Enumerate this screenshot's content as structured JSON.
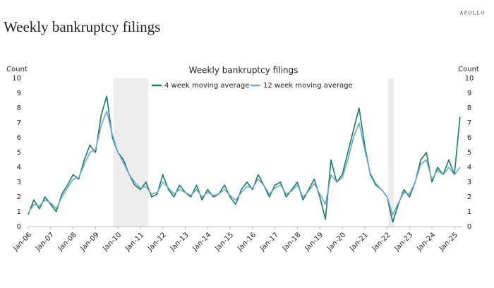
{
  "brand": "APOLLO",
  "header": "Weekly bankruptcy filings",
  "chart_data": {
    "type": "line",
    "title": "Weekly bankruptcy filings",
    "ylabel": "Count",
    "y2label": "Count",
    "xlim": [
      2006,
      2025.35
    ],
    "ylim": [
      0,
      10
    ],
    "y2lim": [
      0,
      10
    ],
    "yticks": [
      0,
      1,
      2,
      3,
      4,
      5,
      6,
      7,
      8,
      9,
      10
    ],
    "y2ticks": [
      0,
      1,
      2,
      3,
      4,
      5,
      6,
      7,
      8,
      9,
      10
    ],
    "xticks": [
      {
        "value": 2006,
        "label": "Jan-06"
      },
      {
        "value": 2007,
        "label": "Jan-07"
      },
      {
        "value": 2008,
        "label": "Jan-08"
      },
      {
        "value": 2009,
        "label": "Jan-09"
      },
      {
        "value": 2010,
        "label": "Jan-10"
      },
      {
        "value": 2011,
        "label": "Jan-11"
      },
      {
        "value": 2012,
        "label": "Jan-12"
      },
      {
        "value": 2013,
        "label": "Jan-13"
      },
      {
        "value": 2014,
        "label": "Jan-14"
      },
      {
        "value": 2015,
        "label": "Jan-15"
      },
      {
        "value": 2016,
        "label": "Jan-16"
      },
      {
        "value": 2017,
        "label": "Jan-17"
      },
      {
        "value": 2018,
        "label": "Jan-18"
      },
      {
        "value": 2019,
        "label": "Jan-19"
      },
      {
        "value": 2020,
        "label": "Jan-20"
      },
      {
        "value": 2021,
        "label": "Jan-21"
      },
      {
        "value": 2022,
        "label": "Jan-22"
      },
      {
        "value": 2023,
        "label": "Jan-23"
      },
      {
        "value": 2024,
        "label": "Jan-24"
      },
      {
        "value": 2025,
        "label": "Jan-25"
      }
    ],
    "shaded_regions": [
      [
        2009.8,
        2011.35
      ],
      [
        2022.05,
        2022.3
      ]
    ],
    "shade_color": "#ececec",
    "legend": "top",
    "x": [
      2006,
      2006.25,
      2006.5,
      2006.75,
      2007,
      2007.25,
      2007.5,
      2007.75,
      2008,
      2008.25,
      2008.5,
      2008.75,
      2009,
      2009.25,
      2009.5,
      2009.75,
      2010,
      2010.25,
      2010.5,
      2010.75,
      2011,
      2011.25,
      2011.5,
      2011.75,
      2012,
      2012.25,
      2012.5,
      2012.75,
      2013,
      2013.25,
      2013.5,
      2013.75,
      2014,
      2014.25,
      2014.5,
      2014.75,
      2015,
      2015.25,
      2015.5,
      2015.75,
      2016,
      2016.25,
      2016.5,
      2016.75,
      2017,
      2017.25,
      2017.5,
      2017.75,
      2018,
      2018.25,
      2018.5,
      2018.75,
      2019,
      2019.25,
      2019.5,
      2019.75,
      2020,
      2020.25,
      2020.5,
      2020.75,
      2021,
      2021.25,
      2021.5,
      2021.75,
      2022,
      2022.25,
      2022.5,
      2022.75,
      2023,
      2023.25,
      2023.5,
      2023.75,
      2024,
      2024.25,
      2024.5,
      2024.75,
      2025,
      2025.25
    ],
    "series": [
      {
        "name": "4 week moving average",
        "color": "#177e5e",
        "width": 1.6,
        "values": [
          0.8,
          1.8,
          1.2,
          2.0,
          1.5,
          1.0,
          2.2,
          2.8,
          3.5,
          3.2,
          4.5,
          5.5,
          5.0,
          7.5,
          8.8,
          6.0,
          5.0,
          4.5,
          3.5,
          2.8,
          2.5,
          3.0,
          2.0,
          2.2,
          3.5,
          2.5,
          2.0,
          2.8,
          2.3,
          2.0,
          2.8,
          1.8,
          2.5,
          2.0,
          2.2,
          2.8,
          2.0,
          1.5,
          2.5,
          3.0,
          2.5,
          3.5,
          2.8,
          2.0,
          2.8,
          3.0,
          2.0,
          2.5,
          3.0,
          1.8,
          2.5,
          3.2,
          2.0,
          0.5,
          4.5,
          3.0,
          3.5,
          5.0,
          6.5,
          8.0,
          5.5,
          3.5,
          2.8,
          2.5,
          2.0,
          0.3,
          1.5,
          2.5,
          2.0,
          3.0,
          4.5,
          5.0,
          3.0,
          4.0,
          3.5,
          4.5,
          3.5,
          7.4
        ]
      },
      {
        "name": "12 week moving average",
        "color": "#6fa8d0",
        "width": 1.6,
        "values": [
          0.9,
          1.5,
          1.4,
          1.8,
          1.6,
          1.2,
          2.0,
          2.6,
          3.2,
          3.3,
          4.2,
          5.0,
          5.2,
          6.8,
          7.8,
          6.2,
          5.0,
          4.3,
          3.5,
          3.0,
          2.6,
          2.7,
          2.2,
          2.3,
          3.0,
          2.6,
          2.2,
          2.5,
          2.3,
          2.1,
          2.5,
          2.0,
          2.3,
          2.1,
          2.2,
          2.5,
          2.1,
          1.8,
          2.3,
          2.7,
          2.6,
          3.2,
          2.8,
          2.2,
          2.6,
          2.8,
          2.2,
          2.4,
          2.8,
          2.0,
          2.4,
          2.9,
          2.2,
          1.5,
          3.5,
          3.0,
          3.3,
          4.5,
          6.0,
          7.0,
          5.2,
          3.6,
          2.9,
          2.5,
          2.0,
          0.8,
          1.6,
          2.3,
          2.2,
          3.0,
          4.2,
          4.5,
          3.2,
          3.8,
          3.5,
          4.0,
          3.5,
          4.0
        ]
      }
    ]
  }
}
